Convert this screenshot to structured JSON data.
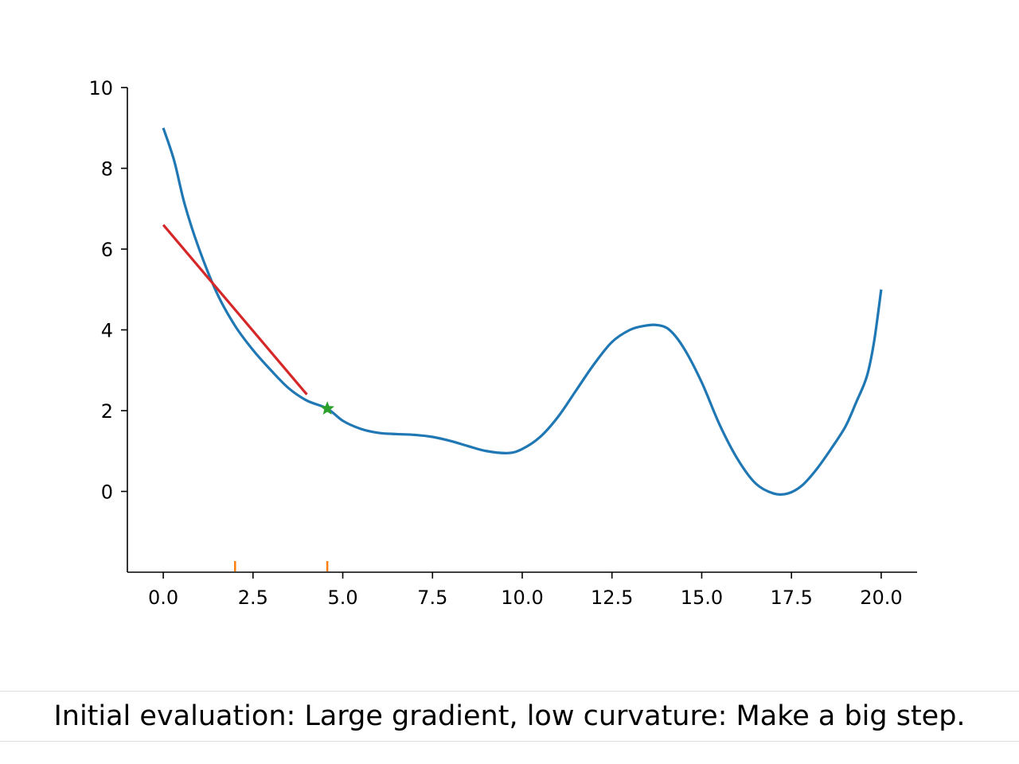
{
  "caption": "Initial evaluation: Large gradient, low curvature: Make a big step.",
  "colors": {
    "curve": "#1f77b4",
    "tangent": "#d62728",
    "evaluated": "#ff7f0e",
    "marker": "#2ca02c"
  },
  "chart_data": {
    "type": "line",
    "xlim": [
      -1,
      21
    ],
    "ylim": [
      -2,
      10
    ],
    "xticks": [
      0.0,
      2.5,
      5.0,
      7.5,
      10.0,
      12.5,
      15.0,
      17.5,
      20.0
    ],
    "xtick_labels": [
      "0.0",
      "2.5",
      "5.0",
      "7.5",
      "10.0",
      "12.5",
      "15.0",
      "17.5",
      "20.0"
    ],
    "yticks": [
      0,
      2,
      4,
      6,
      8,
      10
    ],
    "ytick_labels": [
      "0",
      "2",
      "4",
      "6",
      "8",
      "10"
    ],
    "spines": "left-bottom",
    "grid": false,
    "series": [
      {
        "kind": "curve",
        "x": [
          0,
          0.3,
          0.6,
          1.0,
          1.5,
          2.0,
          2.5,
          3.0,
          3.5,
          4.0,
          4.57,
          5.0,
          5.5,
          6.0,
          6.5,
          7.0,
          7.5,
          8.0,
          8.5,
          9.0,
          9.6,
          10.0,
          10.5,
          11.0,
          11.5,
          12.0,
          12.5,
          13.0,
          13.4,
          13.75,
          14.1,
          14.5,
          15.0,
          15.5,
          16.0,
          16.5,
          17.0,
          17.4,
          17.8,
          18.2,
          18.6,
          19.0,
          19.3,
          19.6,
          19.8,
          20.0
        ],
        "y": [
          9.0,
          8.2,
          7.1,
          6.0,
          4.9,
          4.1,
          3.5,
          3.0,
          2.55,
          2.25,
          2.05,
          1.75,
          1.55,
          1.45,
          1.42,
          1.4,
          1.35,
          1.25,
          1.12,
          1.0,
          0.95,
          1.05,
          1.35,
          1.85,
          2.5,
          3.15,
          3.7,
          4.0,
          4.1,
          4.12,
          4.0,
          3.55,
          2.7,
          1.65,
          0.8,
          0.2,
          -0.05,
          -0.05,
          0.15,
          0.55,
          1.05,
          1.6,
          2.2,
          2.85,
          3.7,
          5.0
        ]
      },
      {
        "kind": "tangent",
        "x": [
          0.0,
          4.0
        ],
        "y": [
          6.6,
          2.4
        ]
      }
    ],
    "evaluated_x": [
      2.0,
      4.57
    ],
    "marker": {
      "x": 4.57,
      "y": 2.05,
      "shape": "star"
    }
  }
}
